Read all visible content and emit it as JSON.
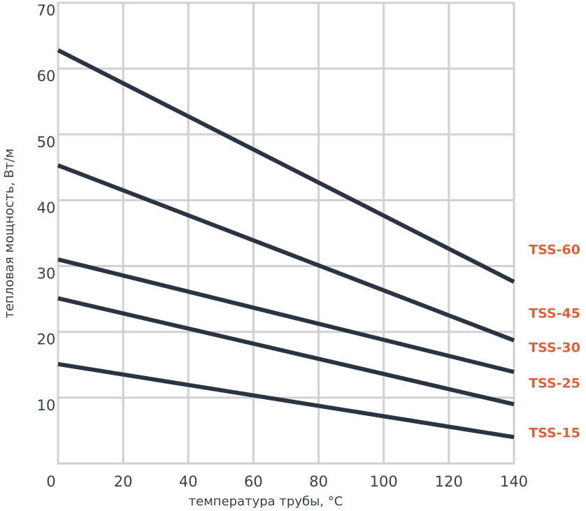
{
  "chart_data": {
    "type": "line",
    "x_label": "температура трубы, °C",
    "y_label": "тепловая мощность, Вт/м",
    "x": [
      0,
      140
    ],
    "series": [
      {
        "name": "TSS-60",
        "color": "#2b3440",
        "values": [
          62.8,
          27.6
        ]
      },
      {
        "name": "TSS-45",
        "color": "#2b3440",
        "values": [
          45.3,
          18.7
        ]
      },
      {
        "name": "TSS-30",
        "color": "#2b3440",
        "values": [
          31.0,
          13.9
        ]
      },
      {
        "name": "TSS-25",
        "color": "#2b3440",
        "values": [
          25.1,
          9.0
        ]
      },
      {
        "name": "TSS-15",
        "color": "#2b3440",
        "values": [
          15.1,
          4.0
        ]
      }
    ],
    "legend_color": "#d9623b",
    "xlim": [
      0,
      140
    ],
    "xticks": [
      0,
      20,
      40,
      60,
      80,
      100,
      120,
      140
    ],
    "ylim": [
      0,
      70
    ],
    "yticks": [
      10,
      20,
      30,
      40,
      50,
      60,
      70
    ],
    "grid": true
  }
}
